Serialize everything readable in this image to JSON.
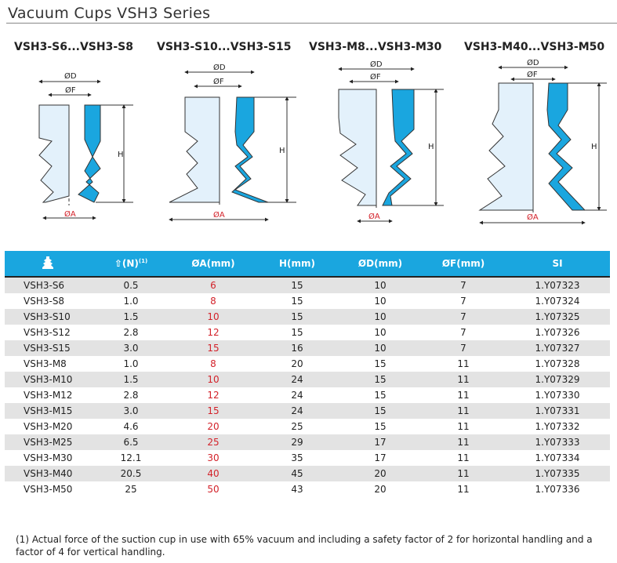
{
  "title": "Vacuum Cups VSH3 Series",
  "diagrams": [
    {
      "label": "VSH3-S6...VSH3-S8",
      "d": "ØD",
      "f": "ØF",
      "h": "H",
      "a": "ØA"
    },
    {
      "label": "VSH3-S10...VSH3-S15",
      "d": "ØD",
      "f": "ØF",
      "h": "H",
      "a": "ØA"
    },
    {
      "label": "VSH3-M8...VSH3-M30",
      "d": "ØD",
      "f": "ØF",
      "h": "H",
      "a": "ØA"
    },
    {
      "label": "VSH3-M40...VSH3-M50",
      "d": "ØD",
      "f": "ØF",
      "h": "H",
      "a": "ØA"
    }
  ],
  "table": {
    "headers": {
      "icon": "vacuum-cup-icon",
      "force": "(N)",
      "force_note": "(1)",
      "a": "ØA(mm)",
      "h": "H(mm)",
      "d": "ØD(mm)",
      "f": "ØF(mm)",
      "si": "SI"
    },
    "rows": [
      [
        "VSH3-S6",
        "0.5",
        "6",
        "15",
        "10",
        "7",
        "1.Y07323"
      ],
      [
        "VSH3-S8",
        "1.0",
        "8",
        "15",
        "10",
        "7",
        "1.Y07324"
      ],
      [
        "VSH3-S10",
        "1.5",
        "10",
        "15",
        "10",
        "7",
        "1.Y07325"
      ],
      [
        "VSH3-S12",
        "2.8",
        "12",
        "15",
        "10",
        "7",
        "1.Y07326"
      ],
      [
        "VSH3-S15",
        "3.0",
        "15",
        "16",
        "10",
        "7",
        "1.Y07327"
      ],
      [
        "VSH3-M8",
        "1.0",
        "8",
        "20",
        "15",
        "11",
        "1.Y07328"
      ],
      [
        "VSH3-M10",
        "1.5",
        "10",
        "24",
        "15",
        "11",
        "1.Y07329"
      ],
      [
        "VSH3-M12",
        "2.8",
        "12",
        "24",
        "15",
        "11",
        "1.Y07330"
      ],
      [
        "VSH3-M15",
        "3.0",
        "15",
        "24",
        "15",
        "11",
        "1.Y07331"
      ],
      [
        "VSH3-M20",
        "4.6",
        "20",
        "25",
        "15",
        "11",
        "1.Y07332"
      ],
      [
        "VSH3-M25",
        "6.5",
        "25",
        "29",
        "17",
        "11",
        "1.Y07333"
      ],
      [
        "VSH3-M30",
        "12.1",
        "30",
        "35",
        "17",
        "11",
        "1.Y07334"
      ],
      [
        "VSH3-M40",
        "20.5",
        "40",
        "45",
        "20",
        "11",
        "1.Y07335"
      ],
      [
        "VSH3-M50",
        "25",
        "50",
        "43",
        "20",
        "11",
        "1.Y07336"
      ]
    ]
  },
  "footnote": "(1) Actual force of the suction cup in use with 65% vacuum and including a safety factor of 2 for horizontal handling and a factor of 4 for vertical handling.",
  "colors": {
    "accent": "#1aa6df",
    "highlight": "#d3222a"
  }
}
